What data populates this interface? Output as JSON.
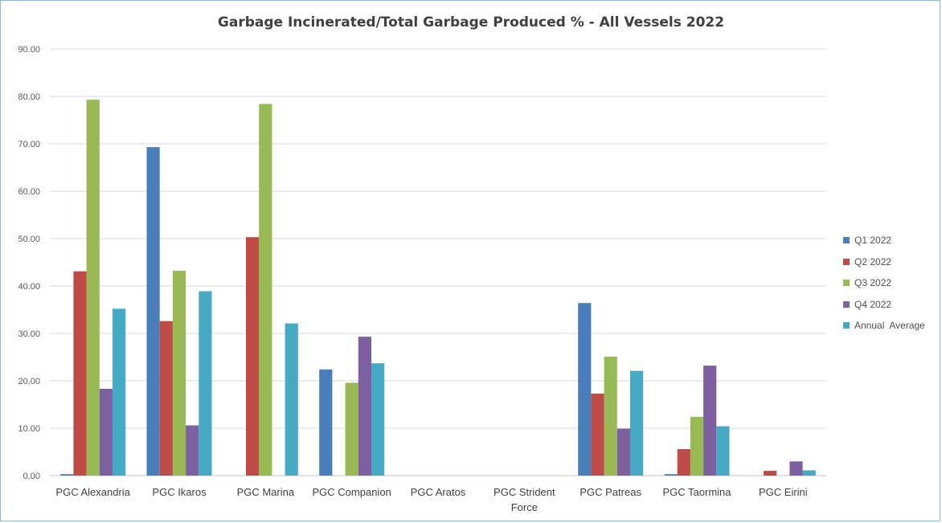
{
  "chart_data": {
    "type": "bar",
    "title": "Garbage Incinerated/Total Garbage Produced % - All Vessels 2022",
    "xlabel": "",
    "ylabel": "",
    "ylim": [
      0,
      90
    ],
    "yticks": [
      "0.00",
      "10.00",
      "20.00",
      "30.00",
      "40.00",
      "50.00",
      "60.00",
      "70.00",
      "80.00",
      "90.00"
    ],
    "grid": true,
    "legend_position": "right",
    "categories": [
      [
        "PGC Alexandria"
      ],
      [
        "PGC Ikaros"
      ],
      [
        "PGC Marina"
      ],
      [
        "PGC Companion"
      ],
      [
        "PGC Aratos"
      ],
      [
        "PGC Strident",
        "Force"
      ],
      [
        "PGC Patreas"
      ],
      [
        "PGC Taormina"
      ],
      [
        "PGC Eirini"
      ]
    ],
    "series": [
      {
        "name": "Q1 2022",
        "color": "#4a7ebb",
        "values": [
          0.3,
          69.3,
          0,
          22.4,
          0,
          0,
          36.4,
          0.3,
          0
        ]
      },
      {
        "name": "Q2 2022",
        "color": "#be4b48",
        "values": [
          43.1,
          32.6,
          50.3,
          0,
          0,
          0,
          17.3,
          5.6,
          1.0
        ]
      },
      {
        "name": "Q3 2022",
        "color": "#98b954",
        "values": [
          79.3,
          43.2,
          78.4,
          19.6,
          0,
          0,
          25.1,
          12.4,
          0
        ]
      },
      {
        "name": "Q4 2022",
        "color": "#7d60a0",
        "values": [
          18.3,
          10.6,
          0,
          29.3,
          0,
          0,
          9.9,
          23.2,
          3.0
        ]
      },
      {
        "name": "Annual  Average",
        "color": "#46aac5",
        "values": [
          35.2,
          38.9,
          32.1,
          23.7,
          0,
          0,
          22.1,
          10.4,
          1.1
        ]
      }
    ]
  }
}
